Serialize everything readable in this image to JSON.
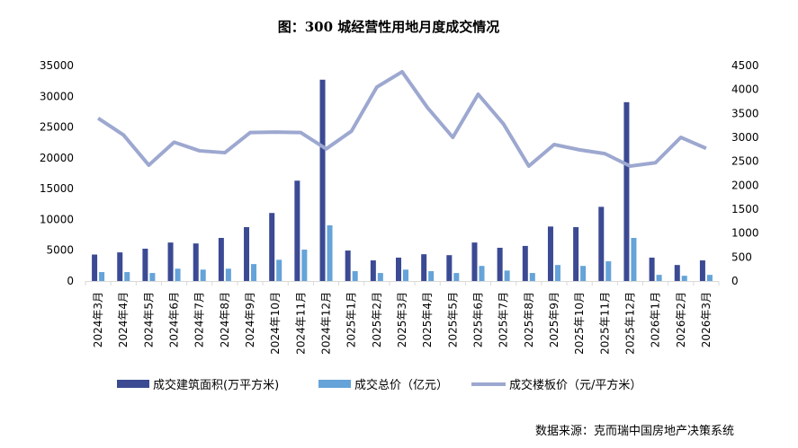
{
  "chart_data": {
    "type": "bar+line",
    "title": "图：300 城经营性用地月度成交情况",
    "categories": [
      "2024年3月",
      "2024年4月",
      "2024年5月",
      "2024年6月",
      "2024年7月",
      "2024年8月",
      "2024年9月",
      "2024年10月",
      "2024年11月",
      "2024年12月",
      "2025年1月",
      "2025年2月",
      "2025年3月",
      "2025年4月",
      "2025年5月",
      "2025年6月",
      "2025年7月",
      "2025年8月",
      "2025年9月",
      "2025年10月",
      "2025年11月",
      "2025年12月",
      "2026年1月",
      "2026年2月",
      "2026年3月"
    ],
    "series": [
      {
        "name": "成交建筑面积(万平方米)",
        "type": "bar",
        "axis": "left",
        "color": "#3b4a93",
        "values": [
          4300,
          4650,
          5250,
          6250,
          6100,
          7000,
          8750,
          11050,
          16300,
          32700,
          4950,
          3350,
          3800,
          4350,
          4200,
          6250,
          5400,
          5700,
          8850,
          8750,
          12050,
          29050,
          3800,
          2600,
          3350
        ]
      },
      {
        "name": "成交总价（亿元）",
        "type": "bar",
        "axis": "left",
        "color": "#65a3d8",
        "values": [
          1450,
          1450,
          1300,
          2000,
          1850,
          2000,
          2750,
          3450,
          5100,
          9050,
          1600,
          1300,
          1850,
          1600,
          1300,
          2450,
          1700,
          1300,
          2600,
          2450,
          3200,
          7000,
          1000,
          850,
          1000
        ]
      },
      {
        "name": "成交楼板价（元/平方米）",
        "type": "line",
        "axis": "right",
        "color": "#9da8d0",
        "values": [
          3400,
          3050,
          2420,
          2900,
          2720,
          2680,
          3100,
          3110,
          3100,
          2760,
          3130,
          4050,
          4370,
          3620,
          3000,
          3900,
          3280,
          2400,
          2850,
          2740,
          2660,
          2400,
          2470,
          3000,
          2770
        ]
      }
    ],
    "ylim_left": [
      0,
      35000
    ],
    "yticks_left": [
      "0",
      "5000",
      "10000",
      "15000",
      "20000",
      "25000",
      "30000",
      "35000"
    ],
    "ylim_right": [
      0,
      4500
    ],
    "yticks_right": [
      "0",
      "500",
      "1000",
      "1500",
      "2000",
      "2500",
      "3000",
      "3500",
      "4000",
      "4500"
    ],
    "grid": false,
    "legend_placement": "bottom"
  },
  "source": "数据来源：克而瑞中国房地产决策系统"
}
